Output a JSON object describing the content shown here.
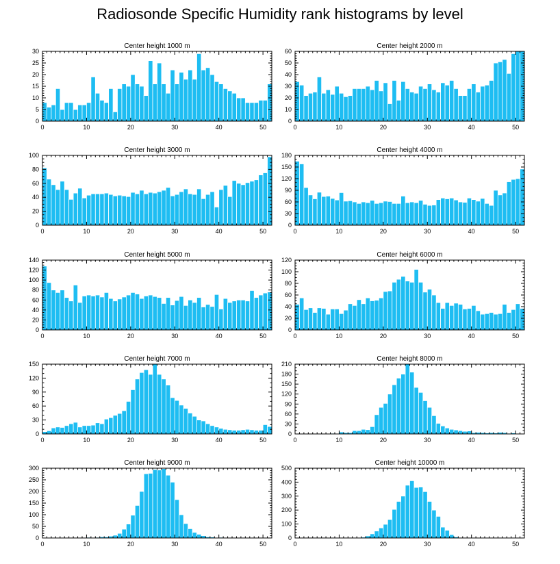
{
  "title": "Radiosonde Specific Humidity rank histograms by level",
  "colors": {
    "bar": "#1ebdf2",
    "axis": "#000000",
    "background": "#ffffff"
  },
  "chart_data": [
    {
      "type": "bar",
      "title": "Center height 1000 m",
      "x": [
        0,
        1,
        2,
        3,
        4,
        5,
        6,
        7,
        8,
        9,
        10,
        11,
        12,
        13,
        14,
        15,
        16,
        17,
        18,
        19,
        20,
        21,
        22,
        23,
        24,
        25,
        26,
        27,
        28,
        29,
        30,
        31,
        32,
        33,
        34,
        35,
        36,
        37,
        38,
        39,
        40,
        41,
        42,
        43,
        44,
        45,
        46,
        47,
        48,
        49,
        50,
        51
      ],
      "values": [
        8,
        6,
        7,
        14,
        5,
        8,
        8,
        5,
        7,
        7,
        8,
        19,
        12,
        9,
        8,
        14,
        4,
        14,
        16,
        15,
        20,
        16,
        15,
        11,
        26,
        16,
        25,
        16,
        12,
        22,
        16,
        21,
        18,
        22,
        18,
        29,
        22,
        23,
        20,
        17,
        16,
        14,
        13,
        12,
        10,
        10,
        8,
        8,
        8,
        9,
        9,
        16
      ],
      "xlim": [
        0,
        52
      ],
      "ylim": [
        0,
        30
      ],
      "xticks": [
        0,
        10,
        20,
        30,
        40,
        50
      ],
      "yticks": [
        0,
        5,
        10,
        15,
        20,
        25,
        30
      ],
      "yminor": 5
    },
    {
      "type": "bar",
      "title": "Center height 2000 m",
      "x": [
        0,
        1,
        2,
        3,
        4,
        5,
        6,
        7,
        8,
        9,
        10,
        11,
        12,
        13,
        14,
        15,
        16,
        17,
        18,
        19,
        20,
        21,
        22,
        23,
        24,
        25,
        26,
        27,
        28,
        29,
        30,
        31,
        32,
        33,
        34,
        35,
        36,
        37,
        38,
        39,
        40,
        41,
        42,
        43,
        44,
        45,
        46,
        47,
        48,
        49,
        50,
        51
      ],
      "values": [
        34,
        31,
        22,
        24,
        25,
        38,
        24,
        27,
        23,
        30,
        24,
        21,
        22,
        28,
        28,
        28,
        30,
        27,
        35,
        26,
        33,
        15,
        35,
        18,
        34,
        28,
        25,
        24,
        30,
        28,
        32,
        27,
        25,
        33,
        31,
        35,
        28,
        22,
        22,
        28,
        32,
        25,
        30,
        31,
        35,
        50,
        51,
        53,
        41,
        58,
        60,
        60
      ],
      "xlim": [
        0,
        52
      ],
      "ylim": [
        0,
        60
      ],
      "xticks": [
        0,
        10,
        20,
        30,
        40,
        50
      ],
      "yticks": [
        0,
        10,
        20,
        30,
        40,
        50,
        60
      ],
      "yminor": 5
    },
    {
      "type": "bar",
      "title": "Center height 3000 m",
      "x": [
        0,
        1,
        2,
        3,
        4,
        5,
        6,
        7,
        8,
        9,
        10,
        11,
        12,
        13,
        14,
        15,
        16,
        17,
        18,
        19,
        20,
        21,
        22,
        23,
        24,
        25,
        26,
        27,
        28,
        29,
        30,
        31,
        32,
        33,
        34,
        35,
        36,
        37,
        38,
        39,
        40,
        41,
        42,
        43,
        44,
        45,
        46,
        47,
        48,
        49,
        50,
        51
      ],
      "values": [
        82,
        66,
        58,
        51,
        63,
        51,
        37,
        46,
        53,
        39,
        43,
        45,
        45,
        45,
        46,
        44,
        42,
        43,
        42,
        41,
        47,
        45,
        50,
        45,
        47,
        46,
        48,
        50,
        54,
        42,
        44,
        48,
        52,
        45,
        44,
        52,
        38,
        44,
        48,
        26,
        51,
        57,
        41,
        64,
        60,
        58,
        61,
        63,
        65,
        72,
        75,
        98
      ],
      "xlim": [
        0,
        52
      ],
      "ylim": [
        0,
        100
      ],
      "xticks": [
        0,
        10,
        20,
        30,
        40,
        50
      ],
      "yticks": [
        0,
        20,
        40,
        60,
        80,
        100
      ],
      "yminor": 4
    },
    {
      "type": "bar",
      "title": "Center height 4000 m",
      "x": [
        0,
        1,
        2,
        3,
        4,
        5,
        6,
        7,
        8,
        9,
        10,
        11,
        12,
        13,
        14,
        15,
        16,
        17,
        18,
        19,
        20,
        21,
        22,
        23,
        24,
        25,
        26,
        27,
        28,
        29,
        30,
        31,
        32,
        33,
        34,
        35,
        36,
        37,
        38,
        39,
        40,
        41,
        42,
        43,
        44,
        45,
        46,
        47,
        48,
        49,
        50,
        51
      ],
      "values": [
        165,
        158,
        97,
        78,
        68,
        85,
        74,
        75,
        69,
        65,
        84,
        62,
        63,
        60,
        56,
        60,
        58,
        64,
        56,
        58,
        62,
        61,
        56,
        56,
        75,
        58,
        60,
        58,
        64,
        54,
        51,
        52,
        66,
        70,
        68,
        70,
        65,
        60,
        59,
        70,
        66,
        62,
        69,
        56,
        51,
        90,
        78,
        83,
        112,
        118,
        120,
        145
      ],
      "xlim": [
        0,
        52
      ],
      "ylim": [
        0,
        180
      ],
      "xticks": [
        0,
        10,
        20,
        30,
        40,
        50
      ],
      "yticks": [
        0,
        30,
        60,
        90,
        120,
        150,
        180
      ],
      "yminor": 3
    },
    {
      "type": "bar",
      "title": "Center height 5000 m",
      "x": [
        0,
        1,
        2,
        3,
        4,
        5,
        6,
        7,
        8,
        9,
        10,
        11,
        12,
        13,
        14,
        15,
        16,
        17,
        18,
        19,
        20,
        21,
        22,
        23,
        24,
        25,
        26,
        27,
        28,
        29,
        30,
        31,
        32,
        33,
        34,
        35,
        36,
        37,
        38,
        39,
        40,
        41,
        42,
        43,
        44,
        45,
        46,
        47,
        48,
        49,
        50,
        51
      ],
      "values": [
        128,
        95,
        80,
        75,
        80,
        65,
        58,
        90,
        55,
        68,
        70,
        68,
        70,
        66,
        75,
        63,
        58,
        62,
        66,
        70,
        75,
        72,
        63,
        68,
        70,
        67,
        65,
        53,
        65,
        50,
        59,
        67,
        49,
        60,
        55,
        65,
        46,
        51,
        47,
        71,
        42,
        63,
        55,
        58,
        60,
        60,
        58,
        79,
        65,
        70,
        74,
        76
      ],
      "xlim": [
        0,
        52
      ],
      "ylim": [
        0,
        140
      ],
      "xticks": [
        0,
        10,
        20,
        30,
        40,
        50
      ],
      "yticks": [
        0,
        20,
        40,
        60,
        80,
        100,
        120,
        140
      ],
      "yminor": 4
    },
    {
      "type": "bar",
      "title": "Center height 6000 m",
      "x": [
        0,
        1,
        2,
        3,
        4,
        5,
        6,
        7,
        8,
        9,
        10,
        11,
        12,
        13,
        14,
        15,
        16,
        17,
        18,
        19,
        20,
        21,
        22,
        23,
        24,
        25,
        26,
        27,
        28,
        29,
        30,
        31,
        32,
        33,
        34,
        35,
        36,
        37,
        38,
        39,
        40,
        41,
        42,
        43,
        44,
        45,
        46,
        47,
        48,
        49,
        50,
        51
      ],
      "values": [
        44,
        55,
        35,
        38,
        30,
        38,
        37,
        27,
        36,
        36,
        28,
        34,
        45,
        42,
        52,
        45,
        55,
        50,
        51,
        55,
        66,
        67,
        82,
        87,
        92,
        84,
        82,
        104,
        82,
        65,
        70,
        60,
        47,
        37,
        47,
        42,
        46,
        44,
        36,
        37,
        42,
        33,
        27,
        28,
        30,
        27,
        28,
        44,
        30,
        35,
        45,
        37
      ],
      "xlim": [
        0,
        52
      ],
      "ylim": [
        0,
        120
      ],
      "xticks": [
        0,
        10,
        20,
        30,
        40,
        50
      ],
      "yticks": [
        0,
        20,
        40,
        60,
        80,
        100,
        120
      ],
      "yminor": 4
    },
    {
      "type": "bar",
      "title": "Center height 7000 m",
      "x": [
        0,
        1,
        2,
        3,
        4,
        5,
        6,
        7,
        8,
        9,
        10,
        11,
        12,
        13,
        14,
        15,
        16,
        17,
        18,
        19,
        20,
        21,
        22,
        23,
        24,
        25,
        26,
        27,
        28,
        29,
        30,
        31,
        32,
        33,
        34,
        35,
        36,
        37,
        38,
        39,
        40,
        41,
        42,
        43,
        44,
        45,
        46,
        47,
        48,
        49,
        50,
        51
      ],
      "values": [
        5,
        7,
        13,
        15,
        14,
        18,
        22,
        25,
        15,
        18,
        18,
        19,
        24,
        22,
        32,
        35,
        40,
        44,
        50,
        70,
        95,
        118,
        132,
        138,
        128,
        150,
        128,
        118,
        105,
        78,
        72,
        62,
        55,
        45,
        38,
        30,
        28,
        22,
        18,
        15,
        12,
        10,
        9,
        8,
        8,
        9,
        10,
        9,
        8,
        8,
        20,
        16
      ],
      "xlim": [
        0,
        52
      ],
      "ylim": [
        0,
        150
      ],
      "xticks": [
        0,
        10,
        20,
        30,
        40,
        50
      ],
      "yticks": [
        0,
        30,
        60,
        90,
        120,
        150
      ],
      "yminor": 3
    },
    {
      "type": "bar",
      "title": "Center height 8000 m",
      "x": [
        0,
        1,
        2,
        3,
        4,
        5,
        6,
        7,
        8,
        9,
        10,
        11,
        12,
        13,
        14,
        15,
        16,
        17,
        18,
        19,
        20,
        21,
        22,
        23,
        24,
        25,
        26,
        27,
        28,
        29,
        30,
        31,
        32,
        33,
        34,
        35,
        36,
        37,
        38,
        39,
        40,
        41,
        42,
        43,
        44,
        45,
        46,
        47,
        48,
        49,
        50,
        51
      ],
      "values": [
        0,
        0,
        0,
        0,
        0,
        1,
        1,
        0,
        2,
        1,
        6,
        4,
        4,
        10,
        10,
        14,
        13,
        22,
        58,
        80,
        92,
        120,
        148,
        168,
        180,
        212,
        186,
        140,
        125,
        100,
        80,
        55,
        32,
        24,
        18,
        14,
        12,
        10,
        8,
        9,
        4,
        5,
        4,
        3,
        4,
        3,
        5,
        4,
        2,
        3,
        0,
        0
      ],
      "xlim": [
        0,
        52
      ],
      "ylim": [
        0,
        210
      ],
      "xticks": [
        0,
        10,
        20,
        30,
        40,
        50
      ],
      "yticks": [
        0,
        30,
        60,
        90,
        120,
        150,
        180,
        210
      ],
      "yminor": 3
    },
    {
      "type": "bar",
      "title": "Center height 9000 m",
      "x": [
        0,
        1,
        2,
        3,
        4,
        5,
        6,
        7,
        8,
        9,
        10,
        11,
        12,
        13,
        14,
        15,
        16,
        17,
        18,
        19,
        20,
        21,
        22,
        23,
        24,
        25,
        26,
        27,
        28,
        29,
        30,
        31,
        32,
        33,
        34,
        35,
        36,
        37,
        38,
        39,
        40,
        41,
        42,
        43,
        44,
        45,
        46,
        47,
        48,
        49,
        50,
        51
      ],
      "values": [
        0,
        0,
        0,
        0,
        0,
        0,
        0,
        0,
        0,
        1,
        3,
        2,
        3,
        5,
        5,
        8,
        12,
        20,
        38,
        60,
        98,
        140,
        200,
        276,
        278,
        294,
        292,
        298,
        270,
        240,
        165,
        100,
        62,
        40,
        24,
        16,
        10,
        5,
        4,
        2,
        3,
        1,
        1,
        1,
        0,
        0,
        0,
        0,
        0,
        0,
        0,
        0
      ],
      "xlim": [
        0,
        52
      ],
      "ylim": [
        0,
        300
      ],
      "xticks": [
        0,
        10,
        20,
        30,
        40,
        50
      ],
      "yticks": [
        0,
        50,
        100,
        150,
        200,
        250,
        300
      ],
      "yminor": 5
    },
    {
      "type": "bar",
      "title": "Center height 10000 m",
      "x": [
        0,
        1,
        2,
        3,
        4,
        5,
        6,
        7,
        8,
        9,
        10,
        11,
        12,
        13,
        14,
        15,
        16,
        17,
        18,
        19,
        20,
        21,
        22,
        23,
        24,
        25,
        26,
        27,
        28,
        29,
        30,
        31,
        32,
        33,
        34,
        35,
        36,
        37,
        38,
        39,
        40,
        41,
        42,
        43,
        44,
        45,
        46,
        47,
        48,
        49,
        50,
        51
      ],
      "values": [
        0,
        0,
        0,
        0,
        0,
        0,
        0,
        0,
        0,
        0,
        0,
        0,
        0,
        2,
        3,
        6,
        15,
        30,
        50,
        72,
        98,
        132,
        205,
        262,
        300,
        378,
        410,
        362,
        365,
        332,
        262,
        200,
        155,
        78,
        55,
        24,
        8,
        3,
        0,
        0,
        0,
        0,
        0,
        0,
        0,
        0,
        0,
        0,
        0,
        0,
        0,
        0
      ],
      "xlim": [
        0,
        52
      ],
      "ylim": [
        0,
        500
      ],
      "xticks": [
        0,
        10,
        20,
        30,
        40,
        50
      ],
      "yticks": [
        0,
        100,
        200,
        300,
        400,
        500
      ],
      "yminor": 5
    }
  ]
}
